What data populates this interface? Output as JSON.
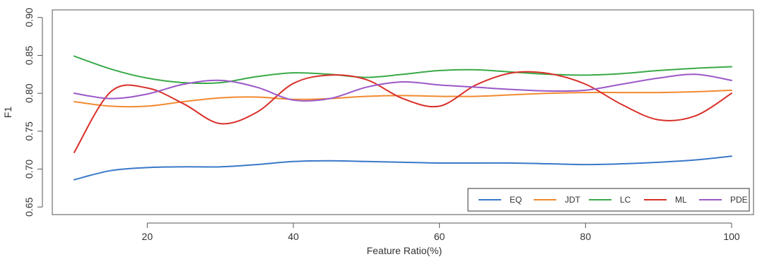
{
  "chart_data": {
    "type": "line",
    "title": "",
    "xlabel": "Feature Ratio(%)",
    "ylabel": "F1",
    "xlim": [
      7,
      103
    ],
    "ylim": [
      0.64,
      0.91
    ],
    "x_ticks": [
      20,
      40,
      60,
      80,
      100
    ],
    "x_tick_labels": [
      "20",
      "40",
      "60",
      "80",
      "100"
    ],
    "y_ticks": [
      0.65,
      0.7,
      0.75,
      0.8,
      0.85,
      0.9
    ],
    "y_tick_labels": [
      "0.65",
      "0.70",
      "0.75",
      "0.80",
      "0.85",
      "0.90"
    ],
    "grid": false,
    "legend_position": "bottom-right",
    "x": [
      10,
      15,
      20,
      25,
      30,
      35,
      40,
      45,
      50,
      55,
      60,
      65,
      70,
      75,
      80,
      85,
      90,
      95,
      100
    ],
    "series": [
      {
        "name": "EQ",
        "color": "#3a78c9",
        "values": [
          0.686,
          0.698,
          0.702,
          0.703,
          0.703,
          0.706,
          0.71,
          0.711,
          0.71,
          0.709,
          0.708,
          0.708,
          0.708,
          0.707,
          0.706,
          0.707,
          0.709,
          0.712,
          0.717
        ]
      },
      {
        "name": "JDT",
        "color": "#f28a30",
        "values": [
          0.789,
          0.783,
          0.783,
          0.789,
          0.794,
          0.795,
          0.792,
          0.793,
          0.796,
          0.797,
          0.796,
          0.796,
          0.798,
          0.8,
          0.801,
          0.801,
          0.801,
          0.802,
          0.804
        ]
      },
      {
        "name": "LC",
        "color": "#3aaa48",
        "values": [
          0.849,
          0.832,
          0.82,
          0.814,
          0.814,
          0.822,
          0.827,
          0.825,
          0.821,
          0.825,
          0.83,
          0.831,
          0.828,
          0.825,
          0.824,
          0.826,
          0.83,
          0.833,
          0.835
        ]
      },
      {
        "name": "ML",
        "color": "#d9302a",
        "values": [
          0.722,
          0.802,
          0.807,
          0.786,
          0.76,
          0.775,
          0.813,
          0.824,
          0.818,
          0.793,
          0.783,
          0.811,
          0.827,
          0.826,
          0.812,
          0.785,
          0.765,
          0.77,
          0.8
        ]
      },
      {
        "name": "PDE",
        "color": "#9b58c7",
        "values": [
          0.8,
          0.793,
          0.799,
          0.812,
          0.817,
          0.808,
          0.791,
          0.793,
          0.808,
          0.815,
          0.811,
          0.808,
          0.805,
          0.803,
          0.804,
          0.812,
          0.82,
          0.825,
          0.817
        ]
      }
    ]
  }
}
